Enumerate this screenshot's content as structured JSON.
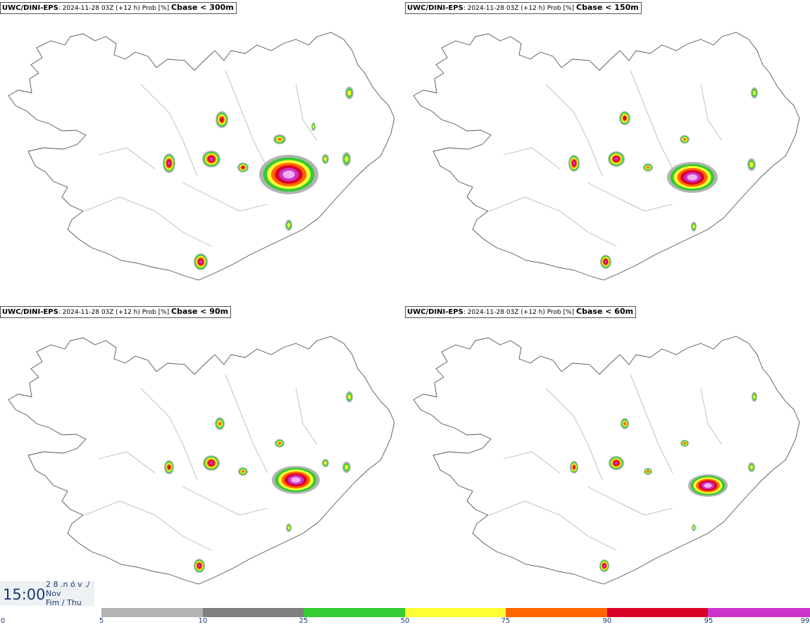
{
  "panels": [
    {
      "model": "UWC/DINI-EPS",
      "run": ": 2024-11-28 03Z (+12 h) Prob [%]",
      "threshold": "Cbase < 300m"
    },
    {
      "model": "UWC/DINI-EPS",
      "run": ": 2024-11-28 03Z (+12 h) Prob [%]",
      "threshold": "Cbase < 150m"
    },
    {
      "model": "UWC/DINI-EPS",
      "run": ": 2024-11-28 03Z (+12 h) Prob [%]",
      "threshold": "Cbase < 90m"
    },
    {
      "model": "UWC/DINI-EPS",
      "run": ": 2024-11-28 03Z (+12 h) Prob [%]",
      "threshold": "Cbase < 60m"
    }
  ],
  "valid_time": {
    "time": "15:00",
    "day_num": "2 8 .n ó v ./",
    "month": "Nov",
    "weekday": "Fim / Thu"
  },
  "legend": {
    "ticks": [
      "0",
      "5",
      "10",
      "25",
      "50",
      "75",
      "90",
      "95",
      "99"
    ],
    "colors": [
      "#b3b3b3",
      "#808080",
      "#33cc33",
      "#ffff33",
      "#ff6600",
      "#d90026",
      "#cc33cc",
      "#f0b0f0"
    ]
  }
}
